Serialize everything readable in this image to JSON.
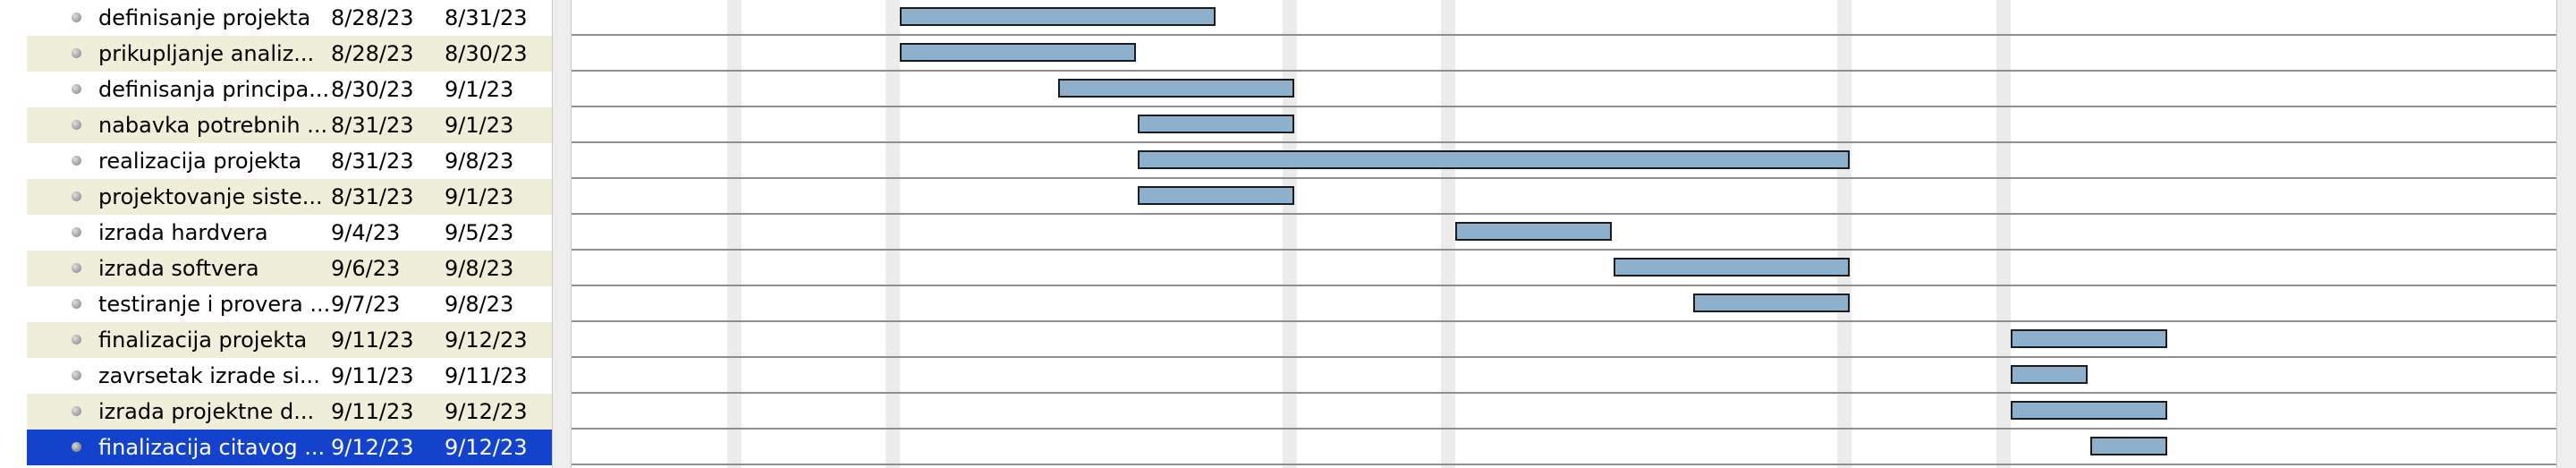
{
  "tasks": [
    {
      "name": "definisanje projekta",
      "start": "8/28/23",
      "end": "8/31/23"
    },
    {
      "name": "prikupljanje analiz...",
      "start": "8/28/23",
      "end": "8/30/23"
    },
    {
      "name": "definisanja principa...",
      "start": "8/30/23",
      "end": "9/1/23"
    },
    {
      "name": "nabavka potrebnih ...",
      "start": "8/31/23",
      "end": "9/1/23"
    },
    {
      "name": "realizacija projekta",
      "start": "8/31/23",
      "end": "9/8/23"
    },
    {
      "name": "projektovanje siste...",
      "start": "8/31/23",
      "end": "9/1/23"
    },
    {
      "name": "izrada hardvera",
      "start": "9/4/23",
      "end": "9/5/23"
    },
    {
      "name": "izrada softvera",
      "start": "9/6/23",
      "end": "9/8/23"
    },
    {
      "name": "testiranje i provera ...",
      "start": "9/7/23",
      "end": "9/8/23"
    },
    {
      "name": "finalizacija projekta",
      "start": "9/11/23",
      "end": "9/12/23"
    },
    {
      "name": "zavrsetak izrade si...",
      "start": "9/11/23",
      "end": "9/11/23"
    },
    {
      "name": "izrada projektne d...",
      "start": "9/11/23",
      "end": "9/12/23"
    },
    {
      "name": "finalizacija citavog ...",
      "start": "9/12/23",
      "end": "9/12/23",
      "selected": true
    }
  ],
  "colors": {
    "row_alt": "#eeeed9",
    "selection": "#1343cc",
    "bar_fill": "#8db0cc",
    "bar_border": "#1c1c1c",
    "weekend": "#ececec"
  }
}
